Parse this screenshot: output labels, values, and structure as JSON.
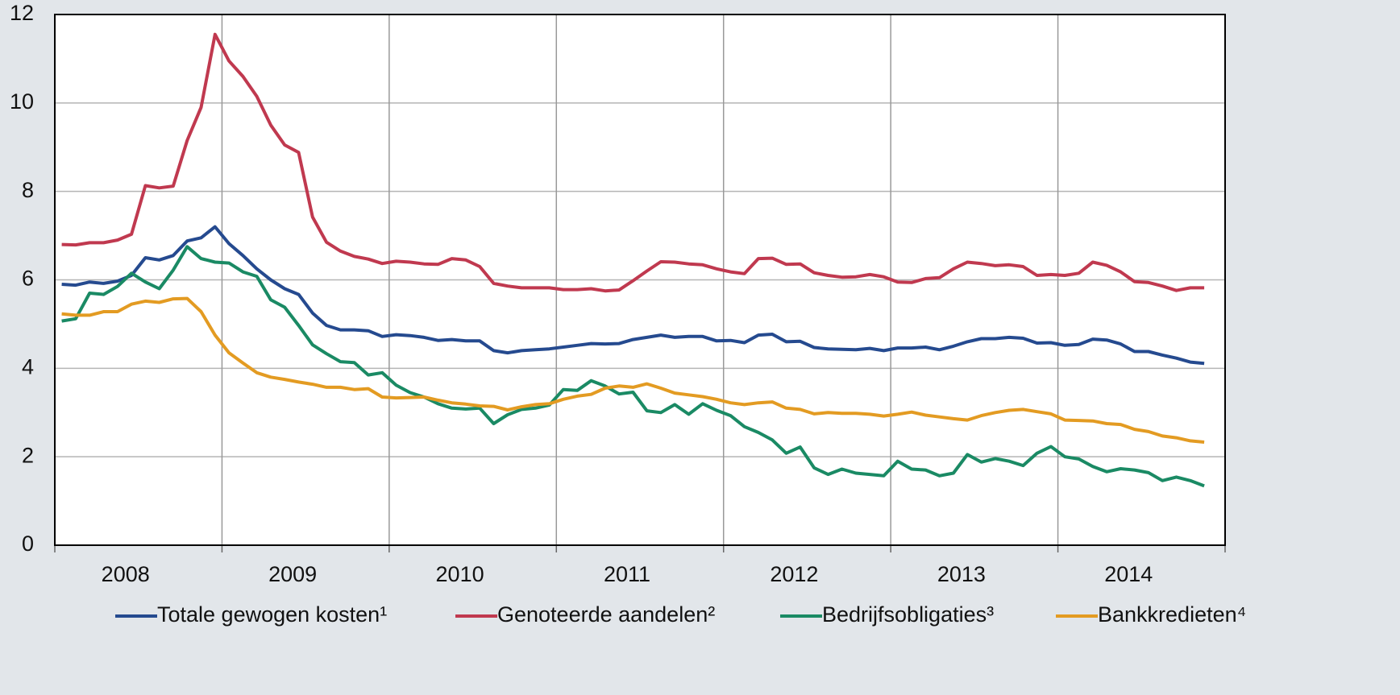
{
  "chart_data": {
    "type": "line",
    "categories": [
      null,
      null,
      null,
      null,
      null,
      "2008",
      null,
      null,
      null,
      null,
      null,
      null,
      null,
      null,
      null,
      null,
      null,
      "2009",
      null,
      null,
      null,
      null,
      null,
      null,
      null,
      null,
      null,
      null,
      null,
      "2010",
      null,
      null,
      null,
      null,
      null,
      null,
      null,
      null,
      null,
      null,
      null,
      "2011",
      null,
      null,
      null,
      null,
      null,
      null,
      null,
      null,
      null,
      null,
      null,
      "2012",
      null,
      null,
      null,
      null,
      null,
      null,
      null,
      null,
      null,
      null,
      null,
      "2013",
      null,
      null,
      null,
      null,
      null,
      null,
      null,
      null,
      null,
      null,
      null,
      "2014",
      null,
      null,
      null,
      null,
      null
    ],
    "series": [
      {
        "name": "Totale gewogen kosten¹",
        "color": "#254a8f",
        "values": [
          5.9,
          5.88,
          5.95,
          5.92,
          5.97,
          6.1,
          6.5,
          6.45,
          6.55,
          6.88,
          6.95,
          7.2,
          6.82,
          6.55,
          6.25,
          6.0,
          5.8,
          5.67,
          5.25,
          4.97,
          4.87,
          4.87,
          4.85,
          4.72,
          4.76,
          4.74,
          4.7,
          4.63,
          4.65,
          4.62,
          4.62,
          4.4,
          4.35,
          4.4,
          4.42,
          4.44,
          4.48,
          4.52,
          4.56,
          4.55,
          4.56,
          4.65,
          4.7,
          4.75,
          4.7,
          4.72,
          4.72,
          4.62,
          4.63,
          4.58,
          4.75,
          4.77,
          4.6,
          4.61,
          4.47,
          4.44,
          4.43,
          4.42,
          4.45,
          4.4,
          4.46,
          4.46,
          4.48,
          4.42,
          4.5,
          4.6,
          4.67,
          4.67,
          4.7,
          4.68,
          4.57,
          4.58,
          4.52,
          4.54,
          4.66,
          4.64,
          4.55,
          4.38,
          4.38,
          4.3,
          4.23,
          4.14,
          4.11
        ]
      },
      {
        "name": "Genoteerde aandelen²",
        "color": "#c0394f",
        "values": [
          6.8,
          6.79,
          6.84,
          6.84,
          6.9,
          7.03,
          8.13,
          8.08,
          8.12,
          9.15,
          9.9,
          11.55,
          10.95,
          10.6,
          10.15,
          9.5,
          9.05,
          8.88,
          7.42,
          6.85,
          6.65,
          6.53,
          6.47,
          6.37,
          6.42,
          6.4,
          6.36,
          6.35,
          6.48,
          6.45,
          6.3,
          5.92,
          5.86,
          5.82,
          5.82,
          5.82,
          5.78,
          5.78,
          5.8,
          5.75,
          5.77,
          5.98,
          6.2,
          6.41,
          6.4,
          6.36,
          6.34,
          6.25,
          6.18,
          6.14,
          6.48,
          6.49,
          6.35,
          6.36,
          6.16,
          6.1,
          6.06,
          6.07,
          6.12,
          6.07,
          5.95,
          5.94,
          6.03,
          6.05,
          6.25,
          6.4,
          6.37,
          6.32,
          6.34,
          6.3,
          6.1,
          6.12,
          6.1,
          6.15,
          6.4,
          6.33,
          6.18,
          5.96,
          5.94,
          5.86,
          5.76,
          5.82,
          5.82
        ]
      },
      {
        "name": "Bedrijfsobligaties³",
        "color": "#1a8a64",
        "values": [
          5.07,
          5.12,
          5.7,
          5.67,
          5.85,
          6.15,
          5.95,
          5.8,
          6.22,
          6.75,
          6.48,
          6.4,
          6.38,
          6.18,
          6.08,
          5.55,
          5.38,
          4.97,
          4.53,
          4.33,
          4.15,
          4.13,
          3.85,
          3.9,
          3.62,
          3.45,
          3.35,
          3.2,
          3.1,
          3.08,
          3.1,
          2.75,
          2.95,
          3.07,
          3.1,
          3.17,
          3.52,
          3.5,
          3.72,
          3.6,
          3.42,
          3.46,
          3.04,
          3.0,
          3.18,
          2.96,
          3.2,
          3.05,
          2.93,
          2.68,
          2.55,
          2.38,
          2.08,
          2.22,
          1.75,
          1.6,
          1.72,
          1.63,
          1.6,
          1.57,
          1.9,
          1.72,
          1.7,
          1.57,
          1.63,
          2.05,
          1.88,
          1.96,
          1.9,
          1.8,
          2.08,
          2.23,
          2.0,
          1.95,
          1.78,
          1.66,
          1.73,
          1.7,
          1.64,
          1.46,
          1.54,
          1.46,
          1.34
        ]
      },
      {
        "name": "Bankkredieten⁴",
        "color": "#e39b22",
        "values": [
          5.23,
          5.2,
          5.2,
          5.28,
          5.28,
          5.45,
          5.52,
          5.49,
          5.57,
          5.58,
          5.28,
          4.75,
          4.35,
          4.12,
          3.9,
          3.8,
          3.75,
          3.69,
          3.64,
          3.57,
          3.57,
          3.52,
          3.54,
          3.35,
          3.33,
          3.34,
          3.35,
          3.28,
          3.22,
          3.19,
          3.15,
          3.14,
          3.06,
          3.13,
          3.18,
          3.2,
          3.3,
          3.37,
          3.41,
          3.55,
          3.6,
          3.57,
          3.65,
          3.55,
          3.44,
          3.4,
          3.36,
          3.3,
          3.22,
          3.18,
          3.22,
          3.24,
          3.1,
          3.07,
          2.97,
          3.0,
          2.98,
          2.98,
          2.96,
          2.92,
          2.96,
          3.01,
          2.94,
          2.9,
          2.86,
          2.83,
          2.93,
          3.0,
          3.05,
          3.07,
          3.02,
          2.97,
          2.83,
          2.82,
          2.81,
          2.75,
          2.73,
          2.62,
          2.57,
          2.47,
          2.43,
          2.36,
          2.33
        ]
      }
    ],
    "ylim": [
      0,
      12
    ],
    "yticks": [
      0,
      2,
      4,
      6,
      8,
      10,
      12
    ],
    "grid": true,
    "legend": "bottom"
  }
}
